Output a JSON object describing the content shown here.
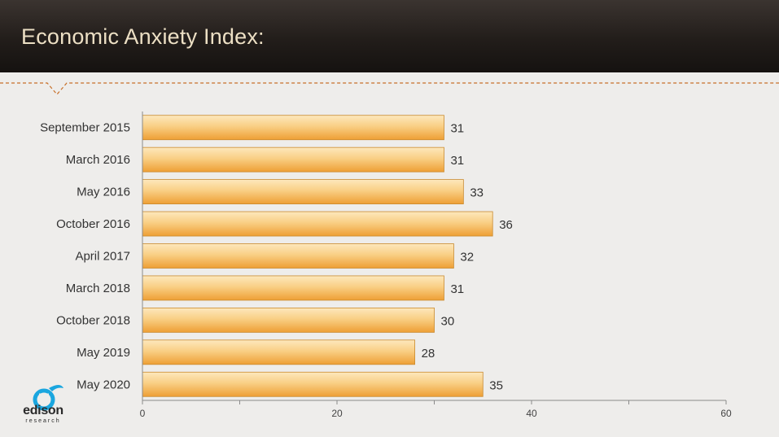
{
  "header": {
    "title": "Economic Anxiety Index:"
  },
  "logo": {
    "word": "edison",
    "sub": "research"
  },
  "colors": {
    "bar_light": "#fde3ae",
    "bar_dark": "#f0a53a",
    "bar_edge": "#c98a2e",
    "accent": "#c8702a",
    "axis": "#8a8a8a"
  },
  "chart_data": {
    "type": "bar",
    "orientation": "horizontal",
    "title": "Economic Anxiety Index:",
    "categories": [
      "September 2015",
      "March 2016",
      "May 2016",
      "October 2016",
      "April 2017",
      "March 2018",
      "October 2018",
      "May 2019",
      "May 2020"
    ],
    "values": [
      31,
      31,
      33,
      36,
      32,
      31,
      30,
      28,
      35
    ],
    "xlim": [
      0,
      60
    ],
    "xticks": [
      0,
      20,
      40,
      60
    ],
    "grid": false,
    "legend": "none"
  }
}
